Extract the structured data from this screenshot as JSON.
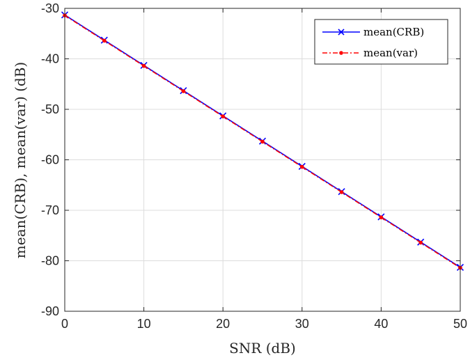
{
  "chart_data": {
    "type": "line",
    "xlabel": "SNR (dB)",
    "ylabel": "mean(CRB), mean(var) (dB)",
    "xlim": [
      0,
      50
    ],
    "ylim": [
      -90,
      -30
    ],
    "xticks": [
      0,
      10,
      20,
      30,
      40,
      50
    ],
    "yticks": [
      -90,
      -80,
      -70,
      -60,
      -50,
      -40,
      -30
    ],
    "grid": true,
    "legend_position": "top-right",
    "x": [
      0,
      5,
      10,
      15,
      20,
      25,
      30,
      35,
      40,
      45,
      50
    ],
    "series": [
      {
        "name": "mean(CRB)",
        "color": "#0000ff",
        "line_style": "solid",
        "marker": "x",
        "values": [
          -31.3,
          -36.3,
          -41.3,
          -46.3,
          -51.3,
          -56.3,
          -61.3,
          -66.3,
          -71.3,
          -76.3,
          -81.3
        ]
      },
      {
        "name": "mean(var)",
        "color": "#ff0000",
        "line_style": "dashed",
        "marker": "dot",
        "values": [
          -31.4,
          -36.4,
          -41.4,
          -46.4,
          -51.4,
          -56.4,
          -61.4,
          -66.4,
          -71.4,
          -76.4,
          -81.4
        ]
      }
    ]
  }
}
